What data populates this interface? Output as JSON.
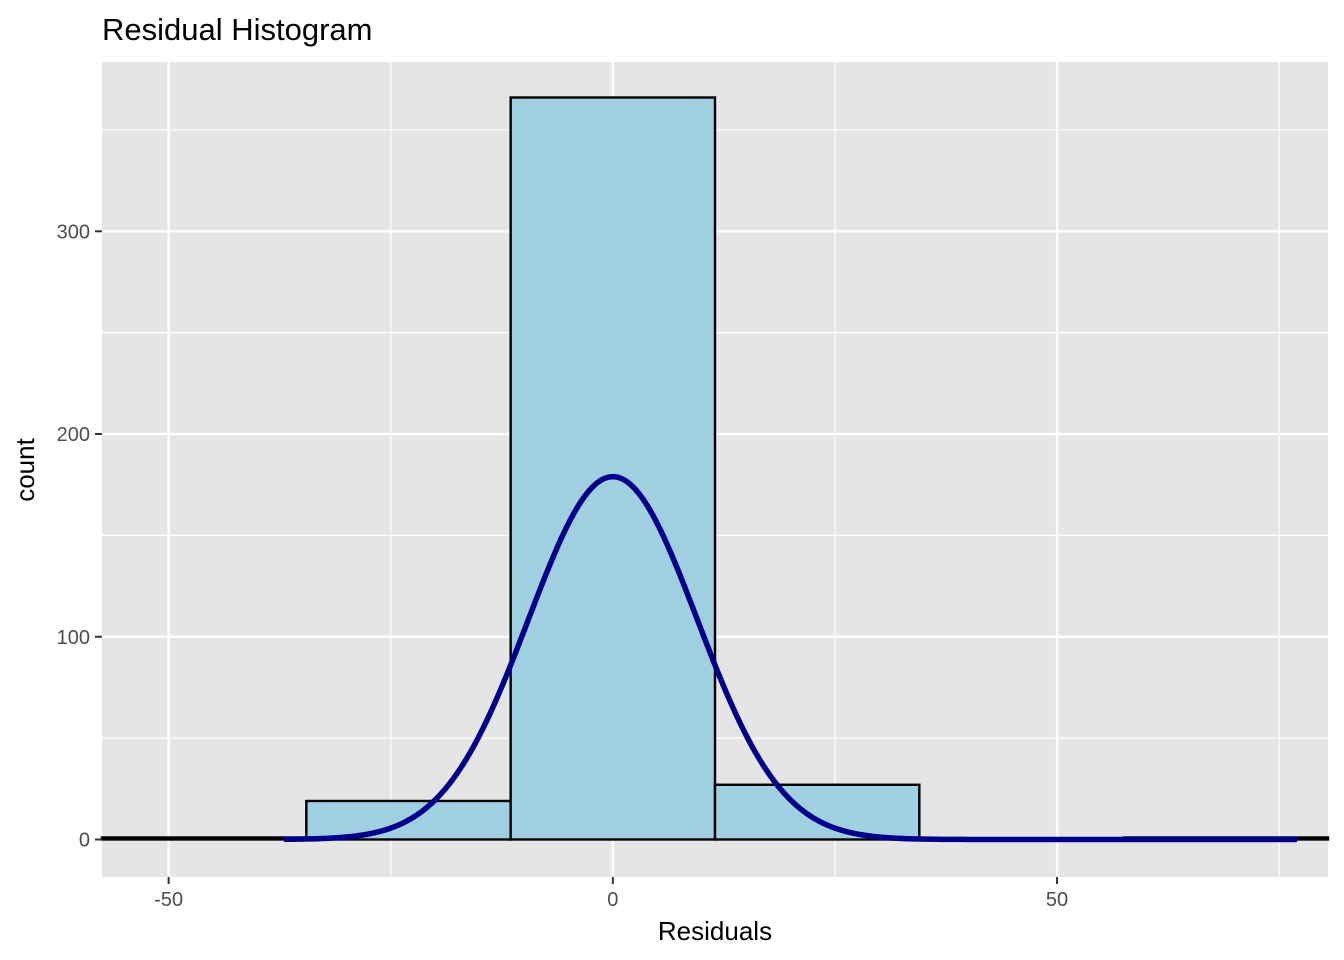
{
  "chart_data": {
    "type": "bar",
    "title": "Residual Histogram",
    "xlabel": "Residuals",
    "ylabel": "count",
    "xlim": [
      -57.5,
      80.5
    ],
    "ylim": [
      -18.5,
      383.5
    ],
    "x_ticks": [
      -50,
      0,
      50
    ],
    "x_tick_labels": [
      "-50",
      "0",
      "50"
    ],
    "y_ticks": [
      0,
      100,
      200,
      300
    ],
    "y_tick_labels": [
      "0",
      "100",
      "200",
      "300"
    ],
    "x_minor_ticks": [
      -25,
      25,
      75
    ],
    "y_minor_ticks": [
      50,
      150,
      250,
      350
    ],
    "bins": [
      {
        "x0": -57.5,
        "x1": -34.5,
        "count": 1
      },
      {
        "x0": -34.5,
        "x1": -11.5,
        "count": 19
      },
      {
        "x0": -11.5,
        "x1": 11.5,
        "count": 366
      },
      {
        "x0": 11.5,
        "x1": 34.5,
        "count": 27
      },
      {
        "x0": 34.5,
        "x1": 57.5,
        "count": 0
      },
      {
        "x0": 57.5,
        "x1": 80.5,
        "count": 1
      }
    ],
    "density_curve": {
      "mean": 0,
      "sd": 9.5,
      "peak": 179,
      "x_range": [
        -37,
        77
      ]
    },
    "grid": true,
    "colors": {
      "panel_background": "#e5e5e5",
      "grid_line": "#ffffff",
      "bar_fill": "#a0cfe1",
      "bar_outline": "#000000",
      "curve": "#00008b"
    }
  }
}
